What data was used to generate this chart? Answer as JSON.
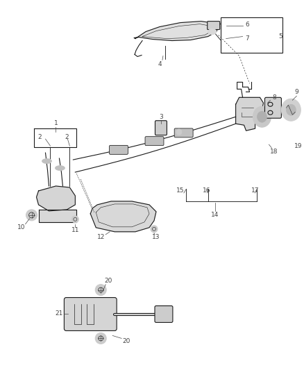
{
  "bg_color": "#ffffff",
  "fg_color": "#1a1a1a",
  "fig_width": 4.38,
  "fig_height": 5.33,
  "dpi": 100,
  "label_color": "#444444",
  "label_fs": 6.5
}
